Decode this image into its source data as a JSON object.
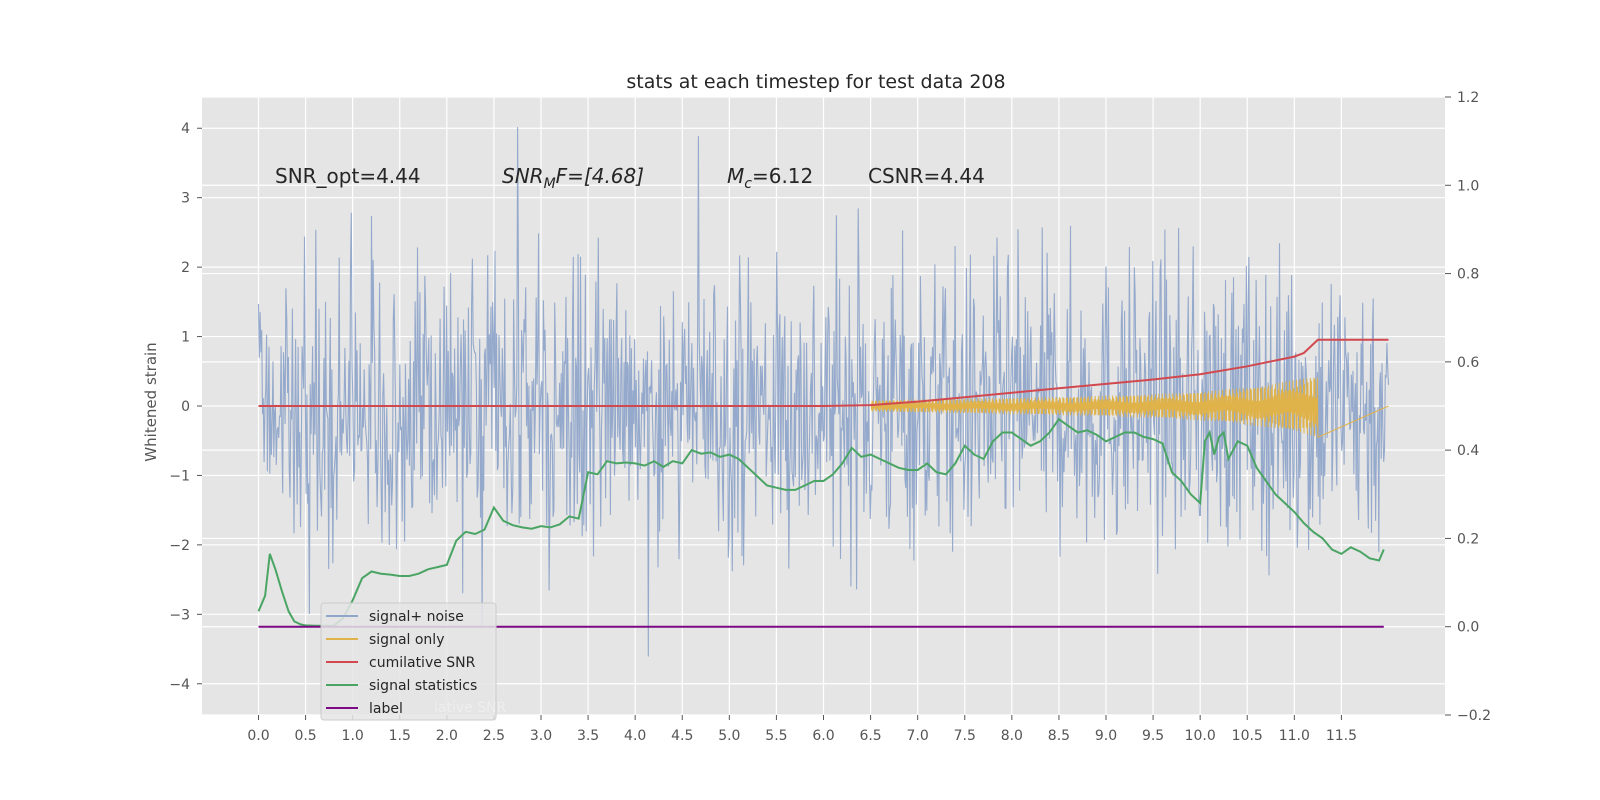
{
  "chart_data": {
    "type": "line",
    "title": "stats at each timestep for test data 208",
    "ylabel": "Whitened strain",
    "xlabel": "",
    "x_ticks": [
      "0.0",
      "0.5",
      "1.0",
      "1.5",
      "2.0",
      "2.5",
      "3.0",
      "3.5",
      "4.0",
      "4.5",
      "5.0",
      "5.5",
      "6.0",
      "6.5",
      "7.0",
      "7.5",
      "8.0",
      "8.5",
      "9.0",
      "9.5",
      "10.0",
      "10.5",
      "11.0",
      "11.5"
    ],
    "y_ticks": [
      "4",
      "3",
      "2",
      "1",
      "0",
      "−1",
      "−2",
      "−3",
      "−4"
    ],
    "y2_ticks": [
      "1.2",
      "1.0",
      "0.8",
      "0.6",
      "0.4",
      "0.2",
      "0.0",
      "−0.2"
    ],
    "xlim": [
      -0.6,
      12.6
    ],
    "ylim": [
      -4.45,
      4.45
    ],
    "y2lim": [
      -0.2,
      1.2
    ],
    "grid": true,
    "legend_position": "lower-left",
    "annotations": {
      "snr_opt": "SNR_opt=4.44",
      "snr_mf_label": "SNR",
      "snr_mf_sub": "M",
      "snr_mf_rest": "F=[4.68]",
      "mc_label": "M",
      "mc_sub": "c",
      "mc_rest": "=6.12",
      "csnr": "CSNR=4.44"
    },
    "legend": [
      "signal+ noise",
      "signal only",
      "cumilative SNR",
      "signal statistics",
      "label"
    ],
    "legend_ghost_text": "lative SNR",
    "colors": {
      "signal_noise": "#8fa5c9",
      "signal_only": "#e0b24a",
      "cumulative_snr": "#d1494e",
      "signal_statistics": "#4aa564",
      "label": "#7b0a84",
      "background": "#e5e5e5"
    },
    "series": [
      {
        "name": "cumilative SNR",
        "axis": "right",
        "x": [
          0.0,
          6.0,
          6.5,
          7.0,
          7.5,
          8.0,
          8.5,
          9.0,
          9.5,
          10.0,
          10.5,
          11.0,
          11.1,
          11.25,
          12.0
        ],
        "values": [
          0.5,
          0.5,
          0.502,
          0.51,
          0.52,
          0.53,
          0.54,
          0.55,
          0.56,
          0.572,
          0.59,
          0.612,
          0.62,
          0.65,
          0.65
        ]
      },
      {
        "name": "signal statistics",
        "axis": "right",
        "x": [
          0.0,
          0.07,
          0.12,
          0.18,
          0.25,
          0.32,
          0.38,
          0.45,
          0.5,
          0.6,
          0.7,
          0.8,
          0.9,
          1.0,
          1.1,
          1.2,
          1.3,
          1.4,
          1.5,
          1.6,
          1.7,
          1.8,
          1.9,
          2.0,
          2.1,
          2.2,
          2.3,
          2.4,
          2.5,
          2.6,
          2.7,
          2.8,
          2.9,
          3.0,
          3.1,
          3.2,
          3.3,
          3.4,
          3.5,
          3.6,
          3.7,
          3.8,
          3.9,
          4.0,
          4.1,
          4.2,
          4.3,
          4.4,
          4.5,
          4.6,
          4.7,
          4.8,
          4.9,
          5.0,
          5.1,
          5.2,
          5.3,
          5.4,
          5.5,
          5.6,
          5.7,
          5.8,
          5.9,
          6.0,
          6.1,
          6.2,
          6.3,
          6.4,
          6.5,
          6.6,
          6.7,
          6.8,
          6.9,
          7.0,
          7.1,
          7.2,
          7.3,
          7.4,
          7.5,
          7.6,
          7.7,
          7.8,
          7.9,
          8.0,
          8.1,
          8.2,
          8.3,
          8.4,
          8.5,
          8.6,
          8.7,
          8.8,
          8.9,
          9.0,
          9.1,
          9.2,
          9.3,
          9.4,
          9.5,
          9.6,
          9.7,
          9.8,
          9.9,
          10.0,
          10.05,
          10.1,
          10.15,
          10.2,
          10.25,
          10.3,
          10.4,
          10.5,
          10.6,
          10.7,
          10.8,
          10.9,
          11.0,
          11.1,
          11.2,
          11.3,
          11.4,
          11.5,
          11.6,
          11.7,
          11.8,
          11.9,
          11.95
        ],
        "values": [
          0.035,
          0.07,
          0.165,
          0.13,
          0.08,
          0.035,
          0.012,
          0.005,
          0.003,
          0.002,
          0.002,
          0.002,
          0.02,
          0.06,
          0.11,
          0.125,
          0.12,
          0.118,
          0.115,
          0.115,
          0.12,
          0.13,
          0.135,
          0.14,
          0.195,
          0.215,
          0.21,
          0.22,
          0.27,
          0.24,
          0.23,
          0.225,
          0.222,
          0.228,
          0.225,
          0.232,
          0.25,
          0.245,
          0.35,
          0.345,
          0.375,
          0.37,
          0.372,
          0.37,
          0.365,
          0.375,
          0.362,
          0.375,
          0.37,
          0.4,
          0.392,
          0.395,
          0.385,
          0.39,
          0.38,
          0.36,
          0.34,
          0.32,
          0.315,
          0.31,
          0.31,
          0.32,
          0.33,
          0.33,
          0.345,
          0.37,
          0.405,
          0.385,
          0.39,
          0.38,
          0.37,
          0.36,
          0.355,
          0.355,
          0.37,
          0.35,
          0.345,
          0.37,
          0.41,
          0.39,
          0.38,
          0.42,
          0.44,
          0.44,
          0.425,
          0.41,
          0.42,
          0.44,
          0.47,
          0.455,
          0.44,
          0.445,
          0.435,
          0.42,
          0.43,
          0.44,
          0.44,
          0.43,
          0.425,
          0.415,
          0.35,
          0.33,
          0.3,
          0.28,
          0.42,
          0.44,
          0.39,
          0.43,
          0.44,
          0.38,
          0.42,
          0.41,
          0.36,
          0.33,
          0.3,
          0.28,
          0.26,
          0.235,
          0.215,
          0.2,
          0.175,
          0.165,
          0.18,
          0.17,
          0.155,
          0.15,
          0.175
        ]
      },
      {
        "name": "label",
        "axis": "right",
        "x": [
          0.0,
          11.95
        ],
        "values": [
          0.0,
          0.0
        ]
      },
      {
        "name": "signal+ noise",
        "axis": "left",
        "x_range": [
          0.0,
          12.0
        ],
        "envelope": "noisy, typical amplitude ±2.2, extremes near +4.1 and −4.0"
      },
      {
        "name": "signal only",
        "axis": "left",
        "x_range": [
          6.5,
          11.25
        ],
        "envelope": "chirp, amplitude growing from 0 to about 0.45 at 11.25"
      }
    ]
  }
}
